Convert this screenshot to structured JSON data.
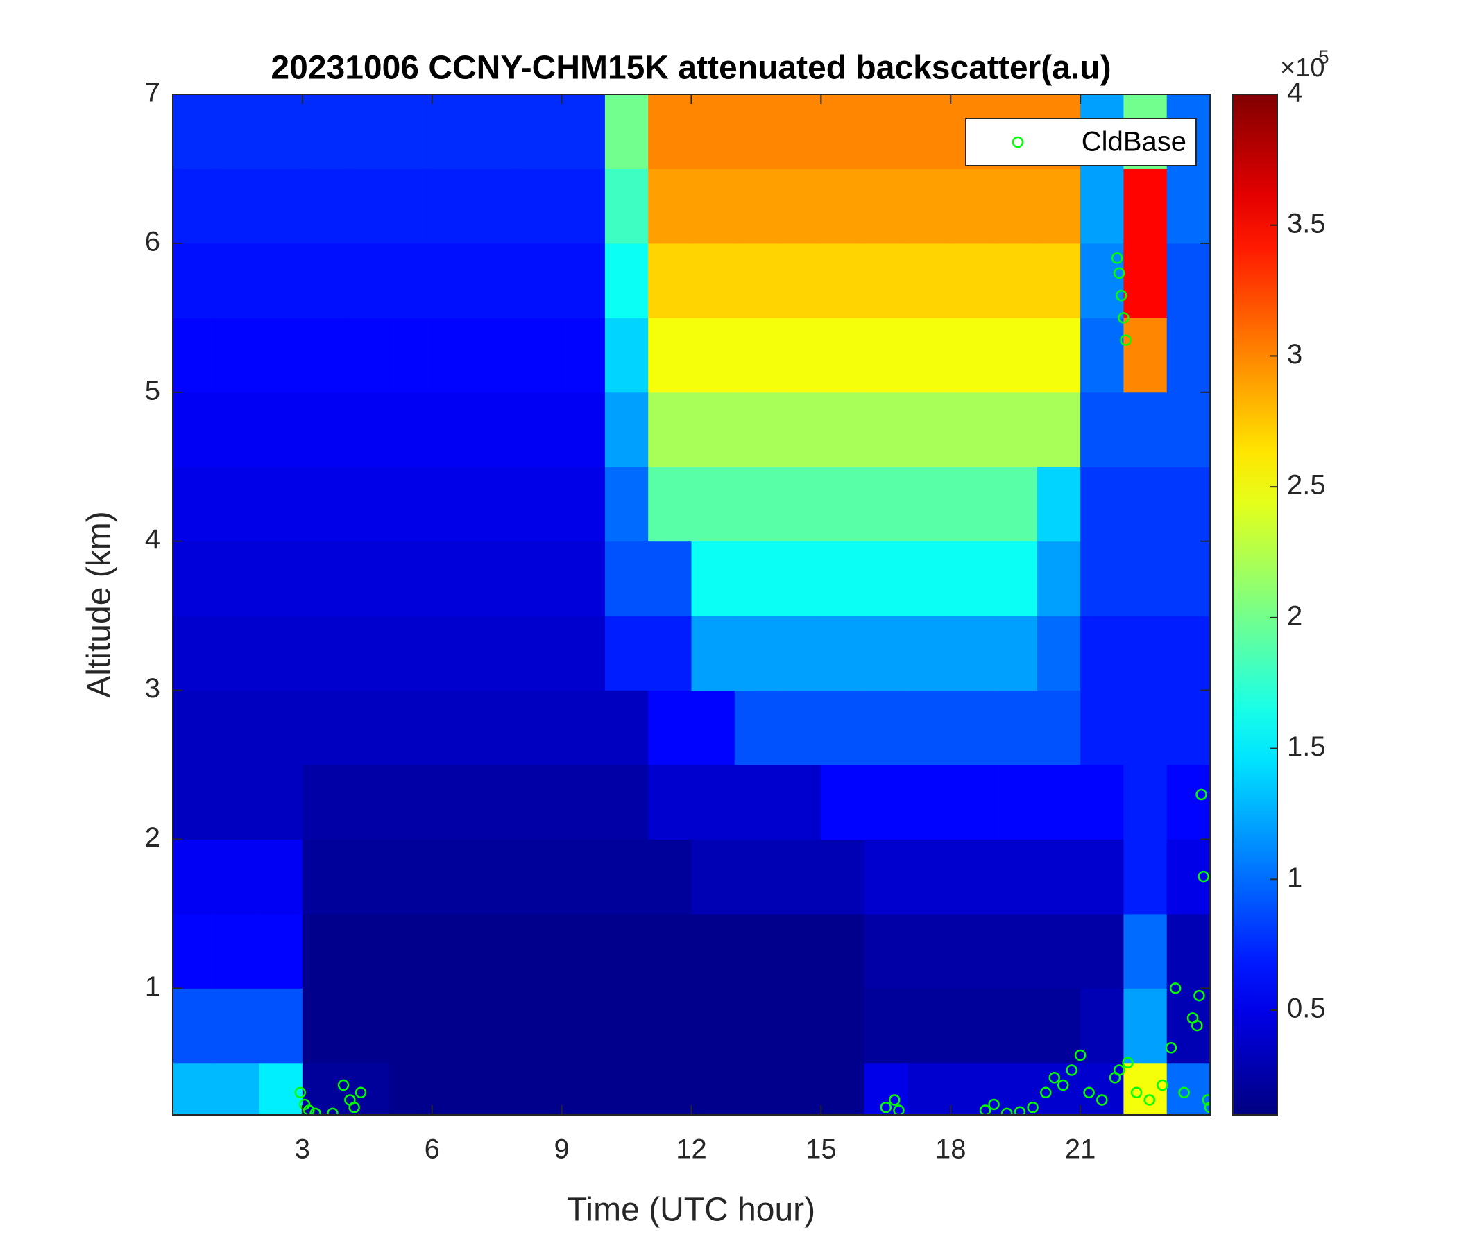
{
  "chart_data": {
    "type": "heatmap",
    "title": "20231006 CCNY-CHM15K attenuated backscatter(a.u)",
    "xlabel": "Time (UTC hour)",
    "ylabel": "Altitude (km)",
    "xlim": [
      0,
      24
    ],
    "xticks": [
      3,
      6,
      9,
      12,
      15,
      18,
      21
    ],
    "ylim": [
      0.15,
      7
    ],
    "yticks": [
      1,
      2,
      3,
      4,
      5,
      6,
      7
    ],
    "colormap": "jet",
    "clim": [
      0.1,
      4
    ],
    "cticks": [
      0.5,
      1,
      1.5,
      2,
      2.5,
      3,
      3.5,
      4
    ],
    "cmultiplier": "×10",
    "cexponent": "5",
    "x_edges": [
      0,
      1,
      2,
      3,
      4,
      5,
      6,
      7,
      8,
      9,
      10,
      11,
      12,
      13,
      14,
      15,
      16,
      17,
      18,
      19,
      20,
      21,
      22,
      23,
      24
    ],
    "y_edges": [
      0.15,
      0.5,
      1,
      1.5,
      2,
      2.5,
      3,
      3.5,
      4,
      4.5,
      5,
      5.5,
      6,
      6.5,
      7
    ],
    "z": [
      [
        1.3,
        1.3,
        1.5,
        0.2,
        0.2,
        0.15,
        0.15,
        0.15,
        0.15,
        0.15,
        0.15,
        0.15,
        0.15,
        0.15,
        0.15,
        0.15,
        0.5,
        0.4,
        0.4,
        0.4,
        0.4,
        0.4,
        2.5,
        1.0
      ],
      [
        0.9,
        0.9,
        0.9,
        0.15,
        0.15,
        0.15,
        0.15,
        0.15,
        0.15,
        0.15,
        0.15,
        0.15,
        0.15,
        0.15,
        0.15,
        0.15,
        0.2,
        0.2,
        0.2,
        0.2,
        0.2,
        0.3,
        1.2,
        0.3
      ],
      [
        0.6,
        0.6,
        0.6,
        0.15,
        0.15,
        0.15,
        0.15,
        0.15,
        0.15,
        0.15,
        0.15,
        0.15,
        0.15,
        0.15,
        0.15,
        0.15,
        0.25,
        0.25,
        0.25,
        0.25,
        0.25,
        0.25,
        1.0,
        0.3
      ],
      [
        0.55,
        0.55,
        0.55,
        0.2,
        0.2,
        0.2,
        0.2,
        0.2,
        0.2,
        0.2,
        0.2,
        0.2,
        0.3,
        0.3,
        0.3,
        0.3,
        0.4,
        0.4,
        0.4,
        0.4,
        0.4,
        0.4,
        0.7,
        0.5
      ],
      [
        0.35,
        0.35,
        0.35,
        0.25,
        0.25,
        0.25,
        0.25,
        0.25,
        0.25,
        0.25,
        0.25,
        0.4,
        0.4,
        0.4,
        0.4,
        0.6,
        0.6,
        0.6,
        0.6,
        0.6,
        0.6,
        0.6,
        0.7,
        0.6
      ],
      [
        0.35,
        0.35,
        0.35,
        0.35,
        0.35,
        0.35,
        0.35,
        0.35,
        0.35,
        0.35,
        0.35,
        0.6,
        0.6,
        0.9,
        0.9,
        0.9,
        0.9,
        0.9,
        0.9,
        0.9,
        0.9,
        0.7,
        0.7,
        0.7
      ],
      [
        0.4,
        0.4,
        0.4,
        0.4,
        0.4,
        0.4,
        0.4,
        0.4,
        0.4,
        0.4,
        0.7,
        0.7,
        1.2,
        1.2,
        1.2,
        1.2,
        1.2,
        1.2,
        1.2,
        1.2,
        1.0,
        0.7,
        0.7,
        0.7
      ],
      [
        0.45,
        0.45,
        0.45,
        0.45,
        0.45,
        0.45,
        0.45,
        0.45,
        0.45,
        0.45,
        0.9,
        0.9,
        1.6,
        1.6,
        1.6,
        1.6,
        1.6,
        1.6,
        1.6,
        1.6,
        1.2,
        0.8,
        0.8,
        0.8
      ],
      [
        0.5,
        0.5,
        0.5,
        0.5,
        0.5,
        0.5,
        0.5,
        0.5,
        0.5,
        0.5,
        1.0,
        1.9,
        1.9,
        1.9,
        1.9,
        1.9,
        1.9,
        1.9,
        1.9,
        1.9,
        1.4,
        0.8,
        0.8,
        0.8
      ],
      [
        0.55,
        0.55,
        0.55,
        0.55,
        0.55,
        0.55,
        0.55,
        0.55,
        0.55,
        0.55,
        1.2,
        2.2,
        2.2,
        2.2,
        2.2,
        2.2,
        2.2,
        2.2,
        2.2,
        2.2,
        2.2,
        0.9,
        0.9,
        0.9
      ],
      [
        0.6,
        0.6,
        0.6,
        0.6,
        0.6,
        0.6,
        0.6,
        0.6,
        0.6,
        0.6,
        1.4,
        2.5,
        2.5,
        2.5,
        2.5,
        2.5,
        2.5,
        2.5,
        2.5,
        2.5,
        2.5,
        1.0,
        3.0,
        0.9
      ],
      [
        0.65,
        0.65,
        0.65,
        0.65,
        0.65,
        0.65,
        0.65,
        0.65,
        0.65,
        0.65,
        1.6,
        2.7,
        2.7,
        2.7,
        2.7,
        2.7,
        2.7,
        2.7,
        2.7,
        2.7,
        2.7,
        1.1,
        3.5,
        0.9
      ],
      [
        0.7,
        0.7,
        0.7,
        0.7,
        0.7,
        0.7,
        0.7,
        0.7,
        0.7,
        0.7,
        1.8,
        2.9,
        2.9,
        2.9,
        2.9,
        2.9,
        2.9,
        2.9,
        2.9,
        2.9,
        2.9,
        1.2,
        3.5,
        1.0
      ],
      [
        0.75,
        0.75,
        0.75,
        0.75,
        0.75,
        0.75,
        0.75,
        0.75,
        0.75,
        0.75,
        2.0,
        3.0,
        3.0,
        3.0,
        3.0,
        3.0,
        3.0,
        3.0,
        3.0,
        3.0,
        3.0,
        1.2,
        2.0,
        1.0
      ]
    ],
    "series": [
      {
        "name": "CldBase",
        "color": "#00ff00",
        "x": [
          2.95,
          3.05,
          3.15,
          3.3,
          3.7,
          3.95,
          4.1,
          4.2,
          4.35,
          16.5,
          16.7,
          16.8,
          18.8,
          19.0,
          19.3,
          19.6,
          19.9,
          20.2,
          20.4,
          20.6,
          20.8,
          21.0,
          21.2,
          21.5,
          21.8,
          21.9,
          21.85,
          21.9,
          21.95,
          22.0,
          22.05,
          22.1,
          22.3,
          22.6,
          22.9,
          23.1,
          23.2,
          23.4,
          23.6,
          23.7,
          23.75,
          23.8,
          23.85,
          23.95,
          24.0
        ],
        "y": [
          0.3,
          0.22,
          0.18,
          0.16,
          0.16,
          0.35,
          0.25,
          0.2,
          0.3,
          0.2,
          0.25,
          0.18,
          0.18,
          0.22,
          0.16,
          0.17,
          0.2,
          0.3,
          0.4,
          0.35,
          0.45,
          0.55,
          0.3,
          0.25,
          0.4,
          0.45,
          5.9,
          5.8,
          5.65,
          5.5,
          5.35,
          0.5,
          0.3,
          0.25,
          0.35,
          0.6,
          1.0,
          0.3,
          0.8,
          0.75,
          0.95,
          2.3,
          1.75,
          0.25,
          0.2
        ]
      }
    ],
    "legend": "upper right"
  }
}
